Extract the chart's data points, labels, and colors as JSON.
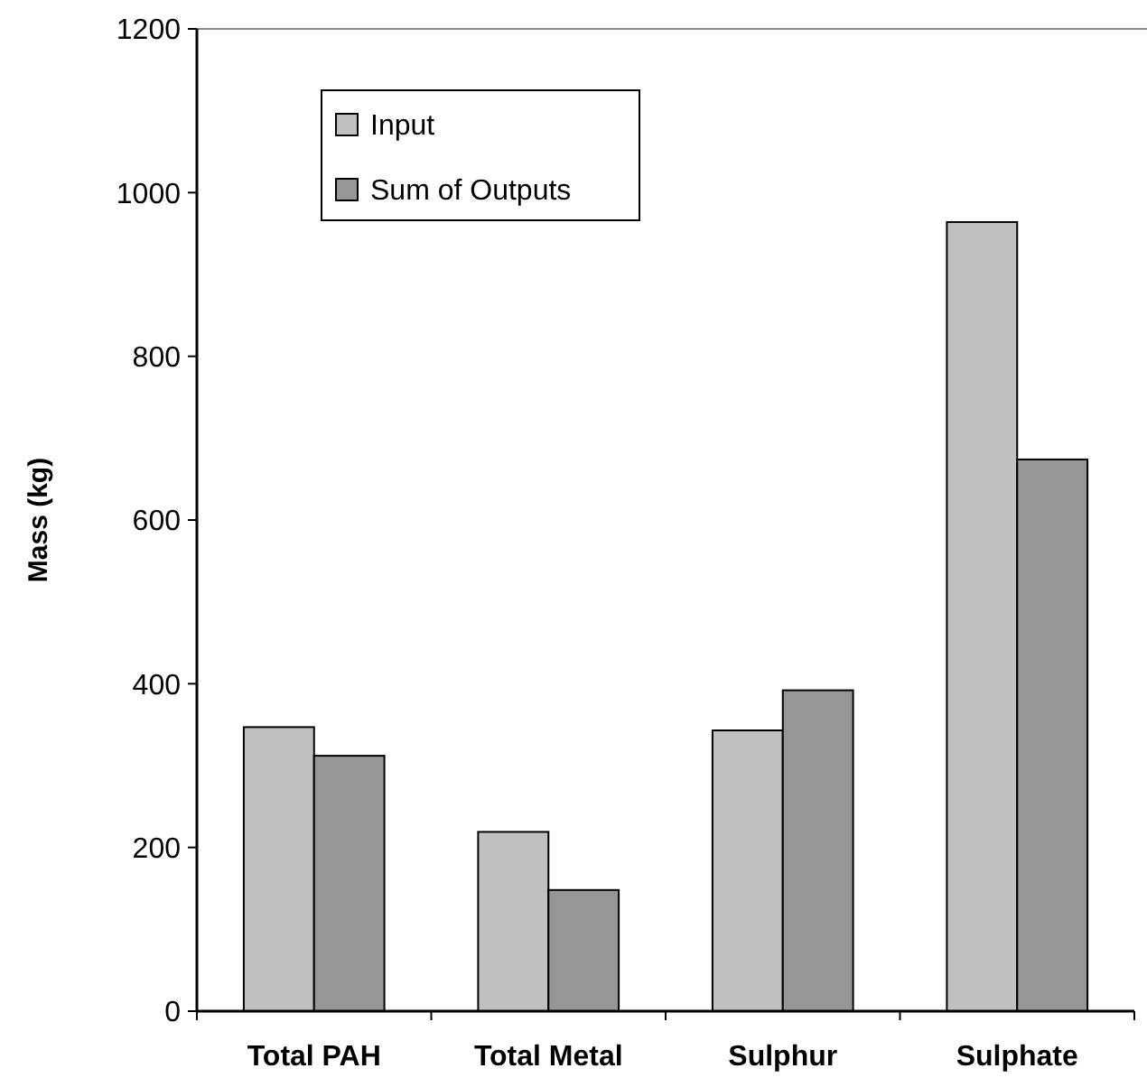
{
  "chart_data": {
    "type": "bar",
    "ylabel": "Mass (kg)",
    "categories": [
      "Total PAH",
      "Total Metal",
      "Sulphur",
      "Sulphate"
    ],
    "series": [
      {
        "name": "Input",
        "color": "#c0c0c0",
        "values": [
          347,
          219,
          343,
          964
        ]
      },
      {
        "name": "Sum of Outputs",
        "color": "#969696",
        "values": [
          312,
          148,
          392,
          674
        ]
      }
    ],
    "ylim": [
      0,
      1200
    ],
    "yticks": [
      0,
      200,
      400,
      600,
      800,
      1000,
      1200
    ],
    "legend": "top left"
  }
}
